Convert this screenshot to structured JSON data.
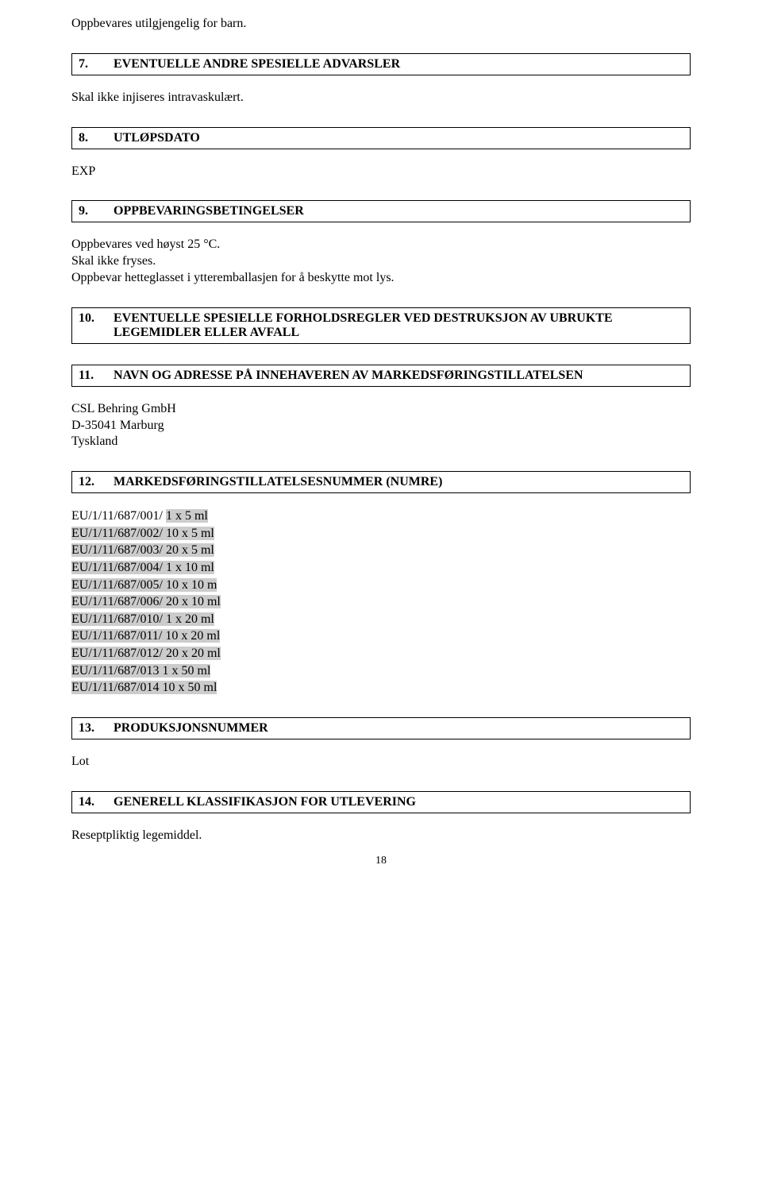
{
  "top_line": "Oppbevares utilgjengelig for barn.",
  "s7": {
    "num": "7.",
    "title": "EVENTUELLE ANDRE SPESIELLE ADVARSLER",
    "body": "Skal ikke injiseres intravaskulært."
  },
  "s8": {
    "num": "8.",
    "title": "UTLØPSDATO",
    "body": "EXP"
  },
  "s9": {
    "num": "9.",
    "title": "OPPBEVARINGSBETINGELSER",
    "l1": "Oppbevares ved høyst 25 °C.",
    "l2": "Skal ikke fryses.",
    "l3": "Oppbevar hetteglasset i ytteremballasjen for å beskytte mot lys."
  },
  "s10": {
    "num": "10.",
    "title": "EVENTUELLE SPESIELLE FORHOLDSREGLER VED DESTRUKSJON AV UBRUKTE LEGEMIDLER ELLER AVFALL"
  },
  "s11": {
    "num": "11.",
    "title": "NAVN OG ADRESSE PÅ INNEHAVEREN AV MARKEDSFØRINGSTILLATELSEN",
    "l1": "CSL Behring GmbH",
    "l2": "D-35041 Marburg",
    "l3": "Tyskland"
  },
  "s12": {
    "num": "12.",
    "title": "MARKEDSFØRINGSTILLATELSESNUMMER (NUMRE)",
    "rows": [
      {
        "pre": "EU/1/11/687/001/ ",
        "hl": "1 x 5 ml"
      },
      {
        "pre": "",
        "hl": "EU/1/11/687/002/ 10 x 5 ml"
      },
      {
        "pre": "",
        "hl": "EU/1/11/687/003/ 20 x 5 ml"
      },
      {
        "pre": "",
        "hl": "EU/1/11/687/004/ 1 x 10 ml"
      },
      {
        "pre": "",
        "hl": "EU/1/11/687/005/ 10 x 10 m"
      },
      {
        "pre": "",
        "hl": "EU/1/11/687/006/ 20 x 10 ml"
      },
      {
        "pre": "",
        "hl": "EU/1/11/687/010/ 1 x 20 ml"
      },
      {
        "pre": "",
        "hl": "EU/1/11/687/011/ 10 x 20 ml"
      },
      {
        "pre": "",
        "hl": "EU/1/11/687/012/ 20 x 20 ml"
      },
      {
        "pre": "",
        "hl": "EU/1/11/687/013 1 x 50 ml"
      },
      {
        "pre": "",
        "hl": "EU/1/11/687/014 10 x 50 ml"
      }
    ]
  },
  "s13": {
    "num": "13.",
    "title": "PRODUKSJONSNUMMER",
    "body": "Lot"
  },
  "s14": {
    "num": "14.",
    "title": "GENERELL KLASSIFIKASJON FOR UTLEVERING",
    "body": "Reseptpliktig legemiddel."
  },
  "page_number": "18"
}
